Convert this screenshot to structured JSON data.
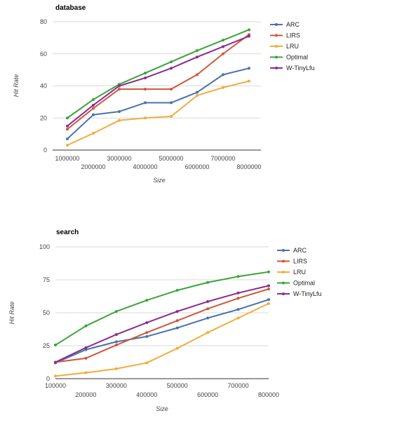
{
  "series_colors": {
    "ARC": "#4a72b0",
    "LIRS": "#d0573a",
    "LRU": "#f0ad3c",
    "Optimal": "#3aa43a",
    "W-TinyLfu": "#8b2c8f"
  },
  "chart_data": [
    {
      "type": "line",
      "title": "database",
      "xlabel": "Size",
      "ylabel": "Hit Rate",
      "ylim": [
        0,
        80
      ],
      "yticks": [
        0,
        20,
        40,
        60,
        80
      ],
      "x_tick_labels": [
        "1000000",
        "2000000",
        "3000000",
        "4000000",
        "5000000",
        "6000000",
        "7000000",
        "8000000"
      ],
      "x": [
        1000000,
        2000000,
        3000000,
        4000000,
        5000000,
        6000000,
        7000000,
        8000000
      ],
      "legend_position": "right",
      "grid": true,
      "series": [
        {
          "name": "ARC",
          "values": [
            7,
            22,
            24,
            29.5,
            29.5,
            36,
            47,
            51
          ]
        },
        {
          "name": "LIRS",
          "values": [
            13,
            26,
            38,
            38,
            38,
            47,
            60,
            72
          ]
        },
        {
          "name": "LRU",
          "values": [
            3,
            10.5,
            18.5,
            20,
            21,
            34,
            39,
            43
          ]
        },
        {
          "name": "Optimal",
          "values": [
            20,
            31.5,
            41,
            48,
            55,
            62,
            68.5,
            75
          ]
        },
        {
          "name": "W-TinyLfu",
          "values": [
            15,
            28,
            40,
            45,
            51,
            58,
            64.5,
            71
          ]
        }
      ]
    },
    {
      "type": "line",
      "title": "search",
      "xlabel": "Size",
      "ylabel": "Hit Rate",
      "ylim": [
        0,
        100
      ],
      "yticks": [
        0,
        25,
        50,
        75,
        100
      ],
      "x_tick_labels": [
        "100000",
        "200000",
        "300000",
        "400000",
        "500000",
        "600000",
        "700000",
        "800000"
      ],
      "x": [
        100000,
        200000,
        300000,
        400000,
        500000,
        600000,
        700000,
        800000
      ],
      "legend_position": "right",
      "grid": true,
      "series": [
        {
          "name": "ARC",
          "values": [
            12,
            22,
            28,
            32,
            38.5,
            46,
            52.5,
            60
          ]
        },
        {
          "name": "LIRS",
          "values": [
            12.5,
            15.5,
            25.5,
            35,
            44,
            53,
            61,
            68
          ]
        },
        {
          "name": "LRU",
          "values": [
            2,
            4.5,
            7.5,
            12,
            23,
            35,
            46,
            57
          ]
        },
        {
          "name": "Optimal",
          "values": [
            25.5,
            40,
            51,
            59.5,
            67,
            73,
            77.5,
            81
          ]
        },
        {
          "name": "W-TinyLfu",
          "values": [
            12.5,
            23.5,
            33.5,
            42.5,
            51,
            58.5,
            65,
            70.5
          ]
        }
      ]
    }
  ]
}
